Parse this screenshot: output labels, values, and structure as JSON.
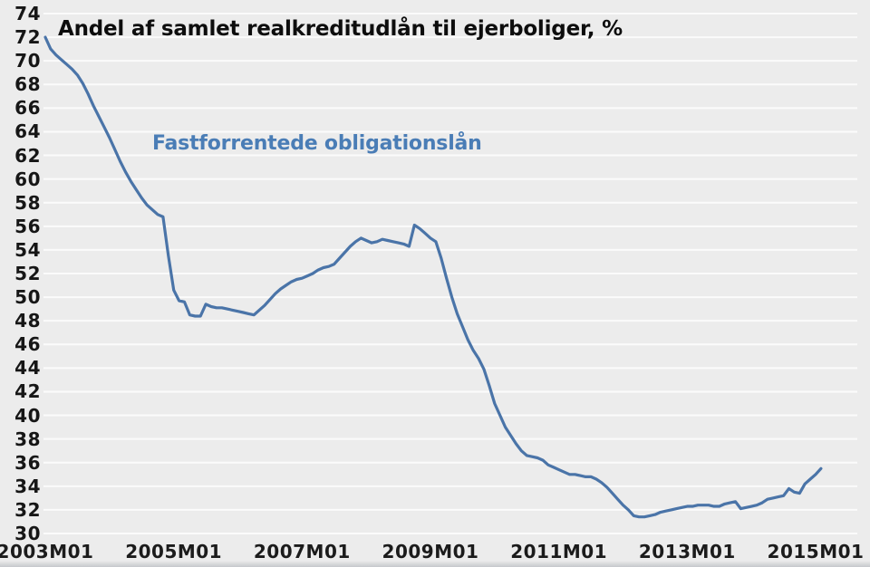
{
  "page": {
    "background": "#ececec",
    "gridline_color": "#fbfbfb"
  },
  "chart_data": {
    "type": "line",
    "title": "Andel af samlet realkreditudlån til ejerboliger, %",
    "series_label": "Fastforrentede obligationslån",
    "series_color": "#4a74a8",
    "xlabel": "",
    "ylabel": "",
    "ylim": [
      30,
      74
    ],
    "y_ticks": [
      74,
      72,
      70,
      68,
      66,
      64,
      62,
      60,
      58,
      56,
      54,
      52,
      50,
      48,
      46,
      44,
      42,
      40,
      38,
      36,
      34,
      32,
      30
    ],
    "x_tick_labels": [
      "2003M01",
      "2005M01",
      "2007M01",
      "2009M01",
      "2011M01",
      "2013M01",
      "2015M01"
    ],
    "x_tick_month_index": [
      0,
      24,
      48,
      72,
      96,
      120,
      144
    ],
    "frequency": "monthly",
    "legend_position": "inside-top-left-text",
    "grid": "horizontal-white",
    "months": [
      "2003M01",
      "2003M02",
      "2003M03",
      "2003M04",
      "2003M05",
      "2003M06",
      "2003M07",
      "2003M08",
      "2003M09",
      "2003M10",
      "2003M11",
      "2003M12",
      "2004M01",
      "2004M02",
      "2004M03",
      "2004M04",
      "2004M05",
      "2004M06",
      "2004M07",
      "2004M08",
      "2004M09",
      "2004M10",
      "2004M11",
      "2004M12",
      "2005M01",
      "2005M02",
      "2005M03",
      "2005M04",
      "2005M05",
      "2005M06",
      "2005M07",
      "2005M08",
      "2005M09",
      "2005M10",
      "2005M11",
      "2005M12",
      "2006M01",
      "2006M02",
      "2006M03",
      "2006M04",
      "2006M05",
      "2006M06",
      "2006M07",
      "2006M08",
      "2006M09",
      "2006M10",
      "2006M11",
      "2006M12",
      "2007M01",
      "2007M02",
      "2007M03",
      "2007M04",
      "2007M05",
      "2007M06",
      "2007M07",
      "2007M08",
      "2007M09",
      "2007M10",
      "2007M11",
      "2007M12",
      "2008M01",
      "2008M02",
      "2008M03",
      "2008M04",
      "2008M05",
      "2008M06",
      "2008M07",
      "2008M08",
      "2008M09",
      "2008M10",
      "2008M11",
      "2008M12",
      "2009M01",
      "2009M02",
      "2009M03",
      "2009M04",
      "2009M05",
      "2009M06",
      "2009M07",
      "2009M08",
      "2009M09",
      "2009M10",
      "2009M11",
      "2009M12",
      "2010M01",
      "2010M02",
      "2010M03",
      "2010M04",
      "2010M05",
      "2010M06",
      "2010M07",
      "2010M08",
      "2010M09",
      "2010M10",
      "2010M11",
      "2010M12",
      "2011M01",
      "2011M02",
      "2011M03",
      "2011M04",
      "2011M05",
      "2011M06",
      "2011M07",
      "2011M08",
      "2011M09",
      "2011M10",
      "2011M11",
      "2011M12",
      "2012M01",
      "2012M02",
      "2012M03",
      "2012M04",
      "2012M05",
      "2012M06",
      "2012M07",
      "2012M08",
      "2012M09",
      "2012M10",
      "2012M11",
      "2012M12",
      "2013M01",
      "2013M02",
      "2013M03",
      "2013M04",
      "2013M05",
      "2013M06",
      "2013M07",
      "2013M08",
      "2013M09",
      "2013M10",
      "2013M11",
      "2013M12",
      "2014M01",
      "2014M02",
      "2014M03",
      "2014M04",
      "2014M05",
      "2014M06",
      "2014M07",
      "2014M08",
      "2014M09",
      "2014M10",
      "2014M11",
      "2014M12",
      "2015M01",
      "2015M02"
    ],
    "values": [
      72.0,
      71.0,
      70.5,
      70.1,
      69.7,
      69.3,
      68.8,
      68.1,
      67.2,
      66.2,
      65.3,
      64.4,
      63.5,
      62.5,
      61.5,
      60.6,
      59.8,
      59.1,
      58.4,
      57.8,
      57.4,
      57.0,
      56.8,
      53.5,
      50.6,
      49.7,
      49.6,
      48.5,
      48.4,
      48.4,
      49.4,
      49.2,
      49.1,
      49.1,
      49.0,
      48.9,
      48.8,
      48.7,
      48.6,
      48.5,
      48.9,
      49.3,
      49.8,
      50.3,
      50.7,
      51.0,
      51.3,
      51.5,
      51.6,
      51.8,
      52.0,
      52.3,
      52.5,
      52.6,
      52.8,
      53.3,
      53.8,
      54.3,
      54.7,
      55.0,
      54.8,
      54.6,
      54.7,
      54.9,
      54.8,
      54.7,
      54.6,
      54.5,
      54.3,
      56.1,
      55.8,
      55.4,
      55.0,
      54.7,
      53.3,
      51.6,
      50.0,
      48.6,
      47.5,
      46.4,
      45.5,
      44.8,
      43.9,
      42.5,
      41.0,
      40.0,
      39.0,
      38.3,
      37.6,
      37.0,
      36.6,
      36.5,
      36.4,
      36.2,
      35.8,
      35.6,
      35.4,
      35.2,
      35.0,
      35.0,
      34.9,
      34.8,
      34.8,
      34.6,
      34.3,
      33.9,
      33.4,
      32.9,
      32.4,
      32.0,
      31.5,
      31.4,
      31.4,
      31.5,
      31.6,
      31.8,
      31.9,
      32.0,
      32.1,
      32.2,
      32.3,
      32.3,
      32.4,
      32.4,
      32.4,
      32.3,
      32.3,
      32.5,
      32.6,
      32.7,
      32.1,
      32.2,
      32.3,
      32.4,
      32.6,
      32.9,
      33.0,
      33.1,
      33.2,
      33.8,
      33.5,
      33.4,
      34.2,
      34.6,
      35.0,
      35.5
    ]
  }
}
